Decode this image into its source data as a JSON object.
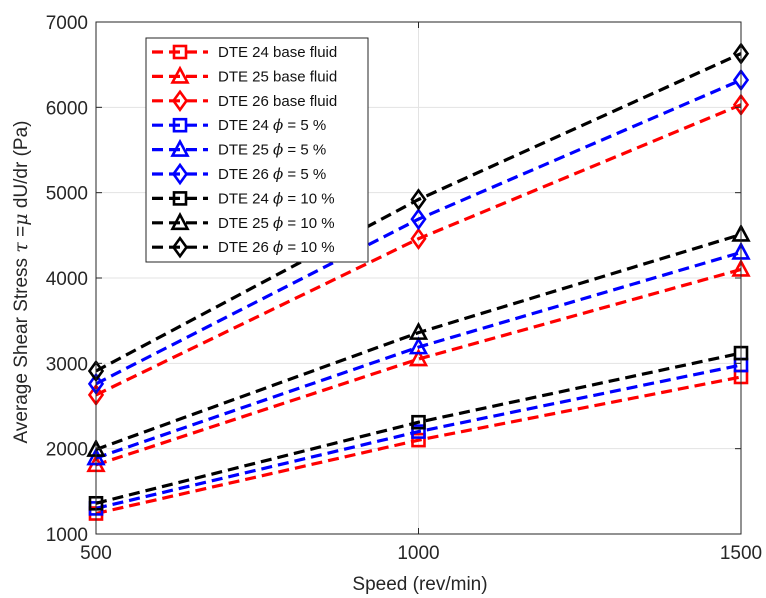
{
  "chart_data": {
    "type": "line",
    "title": "",
    "xlabel": "Speed (rev/min)",
    "ylabel": {
      "prefix": "Average Shear Stress ",
      "tau": "τ",
      "equals": " =",
      "mu": "μ",
      "suffix": " dU/dr (Pa)"
    },
    "xlim": [
      500,
      1500
    ],
    "ylim": [
      1000,
      7000
    ],
    "xticks": [
      500,
      1000,
      1500
    ],
    "yticks": [
      1000,
      2000,
      3000,
      4000,
      5000,
      6000,
      7000
    ],
    "grid": true,
    "legend_position": "top-left",
    "x": [
      500,
      1000,
      1500
    ],
    "series": [
      {
        "name": "DTE 24 base fluid",
        "label_main": "DTE 24 base fluid",
        "label_phi": "",
        "label_rest": "",
        "marker": "square",
        "color": "#ff0000",
        "values": [
          1240,
          2100,
          2840
        ]
      },
      {
        "name": "DTE 25 base fluid",
        "label_main": "DTE 25 base fluid",
        "label_phi": "",
        "label_rest": "",
        "marker": "triangle",
        "color": "#ff0000",
        "values": [
          1810,
          3050,
          4100
        ]
      },
      {
        "name": "DTE 26 base fluid",
        "label_main": "DTE 26 base fluid",
        "label_phi": "",
        "label_rest": "",
        "marker": "diamond",
        "color": "#ff0000",
        "values": [
          2630,
          4460,
          6030
        ]
      },
      {
        "name": "DTE 24 ϕ = 5 %",
        "label_main": "DTE 24 ",
        "label_phi": "ϕ",
        "label_rest": " = 5 %",
        "marker": "square",
        "color": "#0000ff",
        "values": [
          1300,
          2200,
          2980
        ]
      },
      {
        "name": "DTE 25 ϕ = 5 %",
        "label_main": "DTE 25 ",
        "label_phi": "ϕ",
        "label_rest": " = 5 %",
        "marker": "triangle",
        "color": "#0000ff",
        "values": [
          1890,
          3190,
          4300
        ]
      },
      {
        "name": "DTE 26 ϕ = 5 %",
        "label_main": "DTE 26 ",
        "label_phi": "ϕ",
        "label_rest": " = 5 %",
        "marker": "diamond",
        "color": "#0000ff",
        "values": [
          2760,
          4690,
          6320
        ]
      },
      {
        "name": "DTE 24 ϕ = 10 %",
        "label_main": "DTE 24 ",
        "label_phi": "ϕ",
        "label_rest": " = 10 %",
        "marker": "square",
        "color": "#000000",
        "values": [
          1360,
          2310,
          3120
        ]
      },
      {
        "name": "DTE 25 ϕ = 10 %",
        "label_main": "DTE 25 ",
        "label_phi": "ϕ",
        "label_rest": " = 10 %",
        "marker": "triangle",
        "color": "#000000",
        "values": [
          1990,
          3360,
          4510
        ]
      },
      {
        "name": "DTE 26 ϕ = 10 %",
        "label_main": "DTE 26 ",
        "label_phi": "ϕ",
        "label_rest": " = 10 %",
        "marker": "diamond",
        "color": "#000000",
        "values": [
          2910,
          4920,
          6630
        ]
      }
    ]
  }
}
